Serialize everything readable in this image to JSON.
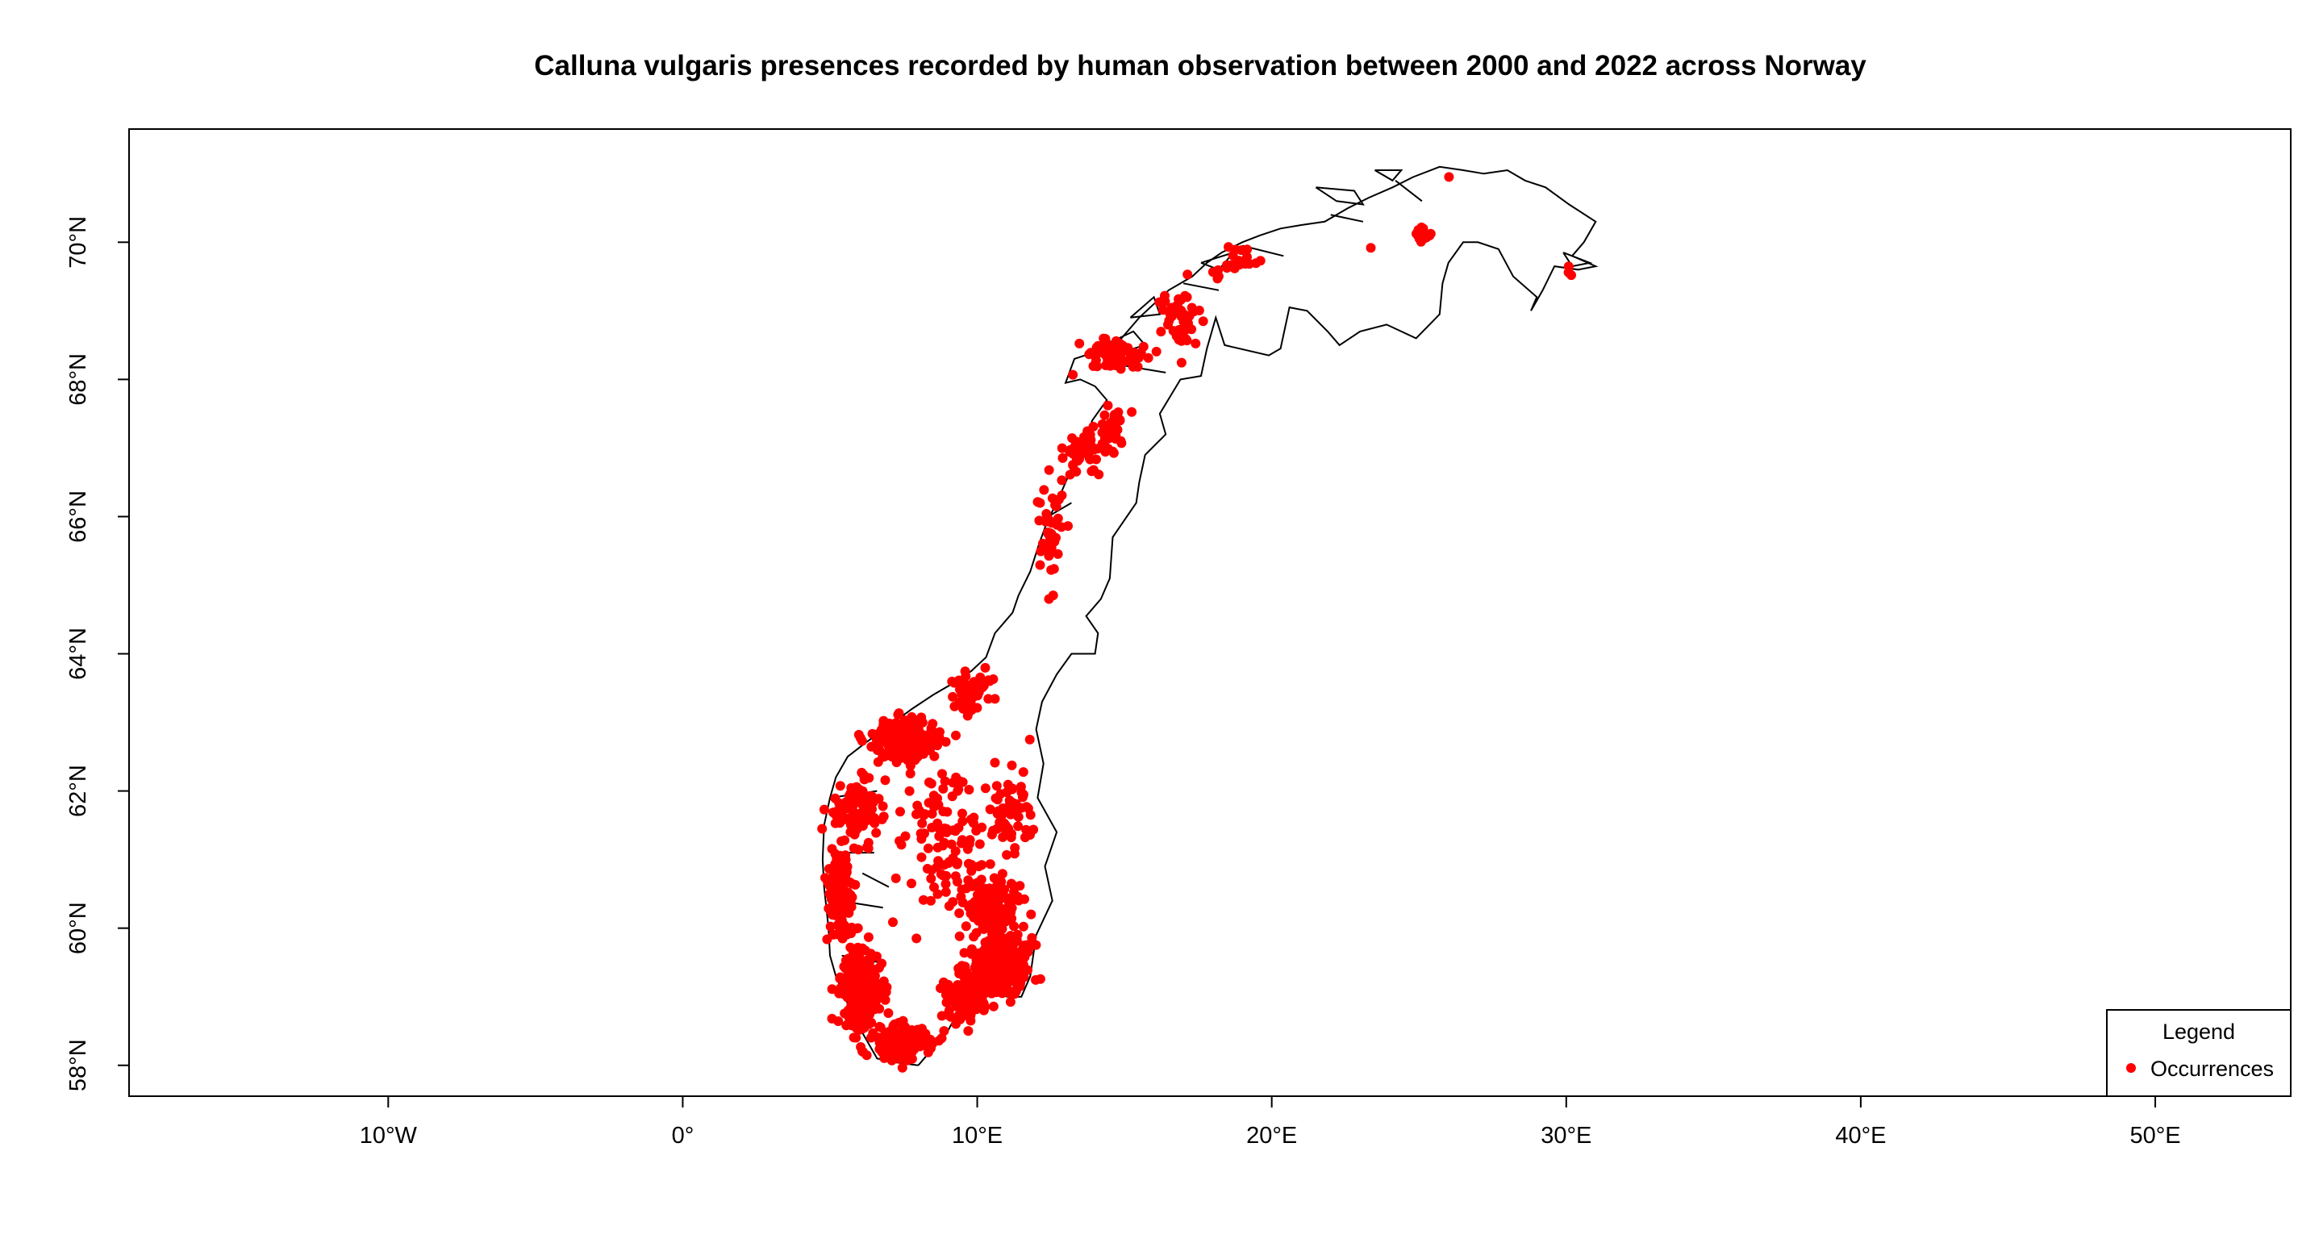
{
  "title": "Calluna vulgaris presences recorded by human observation between 2000 and 2022 across Norway",
  "colors": {
    "points": "#ff0000",
    "outline": "#000000",
    "background": "#ffffff"
  },
  "map": {
    "x_ticks": [
      {
        "value": -10,
        "label": "10°W"
      },
      {
        "value": 0,
        "label": "0°"
      },
      {
        "value": 10,
        "label": "10°E"
      },
      {
        "value": 20,
        "label": "20°E"
      },
      {
        "value": 30,
        "label": "30°E"
      },
      {
        "value": 40,
        "label": "40°E"
      },
      {
        "value": 50,
        "label": "50°E"
      }
    ],
    "y_ticks": [
      {
        "value": 58,
        "label": "58°N"
      },
      {
        "value": 60,
        "label": "60°N"
      },
      {
        "value": 62,
        "label": "62°N"
      },
      {
        "value": 64,
        "label": "64°N"
      },
      {
        "value": 66,
        "label": "66°N"
      },
      {
        "value": 68,
        "label": "68°N"
      },
      {
        "value": 70,
        "label": "70°N"
      }
    ],
    "xlim": [
      -18.8,
      54.6
    ],
    "ylim": [
      57.55,
      71.65
    ],
    "boundary": [
      [
        8.0,
        58.0
      ],
      [
        7.1,
        58.05
      ],
      [
        6.6,
        58.1
      ],
      [
        5.8,
        58.7
      ],
      [
        5.5,
        59.0
      ],
      [
        5.2,
        59.3
      ],
      [
        5.0,
        59.6
      ],
      [
        4.95,
        60.0
      ],
      [
        4.8,
        60.6
      ],
      [
        4.75,
        61.0
      ],
      [
        4.8,
        61.5
      ],
      [
        5.0,
        61.9
      ],
      [
        5.2,
        62.2
      ],
      [
        5.6,
        62.5
      ],
      [
        6.2,
        62.7
      ],
      [
        7.0,
        62.95
      ],
      [
        7.8,
        63.2
      ],
      [
        8.5,
        63.4
      ],
      [
        9.3,
        63.6
      ],
      [
        9.8,
        63.75
      ],
      [
        10.3,
        63.95
      ],
      [
        10.6,
        64.3
      ],
      [
        11.2,
        64.6
      ],
      [
        11.4,
        64.85
      ],
      [
        11.8,
        65.2
      ],
      [
        12.1,
        65.6
      ],
      [
        12.35,
        65.9
      ],
      [
        12.8,
        66.3
      ],
      [
        13.2,
        66.7
      ],
      [
        13.6,
        67.0
      ],
      [
        13.9,
        67.4
      ],
      [
        14.4,
        67.7
      ],
      [
        14.0,
        67.9
      ],
      [
        13.5,
        68.0
      ],
      [
        13.0,
        67.95
      ],
      [
        13.3,
        68.3
      ],
      [
        14.0,
        68.4
      ],
      [
        14.8,
        68.55
      ],
      [
        15.5,
        68.9
      ],
      [
        16.0,
        69.1
      ],
      [
        16.5,
        69.3
      ],
      [
        17.3,
        69.5
      ],
      [
        17.8,
        69.7
      ],
      [
        18.3,
        69.85
      ],
      [
        19.0,
        70.0
      ],
      [
        19.6,
        70.1
      ],
      [
        20.3,
        70.2
      ],
      [
        21.0,
        70.25
      ],
      [
        21.8,
        70.3
      ],
      [
        22.6,
        70.5
      ],
      [
        23.3,
        70.65
      ],
      [
        24.1,
        70.8
      ],
      [
        24.8,
        70.95
      ],
      [
        25.7,
        71.1
      ],
      [
        26.5,
        71.05
      ],
      [
        27.2,
        71.0
      ],
      [
        28.0,
        71.05
      ],
      [
        28.6,
        70.9
      ],
      [
        29.3,
        70.8
      ],
      [
        30.1,
        70.55
      ],
      [
        31.0,
        70.3
      ],
      [
        30.6,
        70.0
      ],
      [
        30.2,
        69.8
      ],
      [
        31.0,
        69.65
      ],
      [
        30.4,
        69.6
      ],
      [
        29.6,
        69.65
      ],
      [
        29.2,
        69.3
      ],
      [
        28.8,
        69.0
      ],
      [
        29.0,
        69.2
      ],
      [
        28.2,
        69.5
      ],
      [
        27.7,
        69.9
      ],
      [
        27.0,
        70.0
      ],
      [
        26.5,
        70.0
      ],
      [
        26.0,
        69.7
      ],
      [
        25.8,
        69.4
      ],
      [
        25.7,
        68.95
      ],
      [
        24.9,
        68.6
      ],
      [
        23.9,
        68.8
      ],
      [
        23.0,
        68.7
      ],
      [
        22.3,
        68.5
      ],
      [
        21.9,
        68.7
      ],
      [
        21.2,
        69.0
      ],
      [
        20.6,
        69.05
      ],
      [
        20.3,
        68.45
      ],
      [
        19.9,
        68.35
      ],
      [
        18.4,
        68.5
      ],
      [
        18.1,
        68.9
      ],
      [
        17.8,
        68.45
      ],
      [
        17.6,
        68.05
      ],
      [
        16.9,
        68.0
      ],
      [
        16.2,
        67.5
      ],
      [
        16.4,
        67.2
      ],
      [
        15.7,
        66.9
      ],
      [
        15.5,
        66.5
      ],
      [
        15.4,
        66.2
      ],
      [
        14.6,
        65.7
      ],
      [
        14.5,
        65.1
      ],
      [
        14.2,
        64.8
      ],
      [
        13.7,
        64.55
      ],
      [
        14.1,
        64.3
      ],
      [
        14.0,
        64.0
      ],
      [
        13.2,
        64.0
      ],
      [
        12.7,
        63.7
      ],
      [
        12.2,
        63.3
      ],
      [
        12.0,
        62.9
      ],
      [
        12.25,
        62.4
      ],
      [
        12.05,
        61.9
      ],
      [
        12.7,
        61.4
      ],
      [
        12.3,
        60.9
      ],
      [
        12.55,
        60.4
      ],
      [
        12.0,
        59.9
      ],
      [
        11.8,
        59.3
      ],
      [
        11.5,
        59.0
      ],
      [
        11.0,
        59.0
      ],
      [
        10.5,
        59.2
      ],
      [
        10.0,
        59.0
      ],
      [
        9.5,
        58.9
      ],
      [
        9.0,
        58.5
      ],
      [
        8.4,
        58.2
      ],
      [
        8.0,
        58.0
      ]
    ],
    "coastal_lines": [
      [
        [
          5.0,
          61.9
        ],
        [
          6.6,
          62.0
        ]
      ],
      [
        [
          5.2,
          61.1
        ],
        [
          6.5,
          61.1
        ]
      ],
      [
        [
          5.3,
          60.4
        ],
        [
          6.8,
          60.3
        ]
      ],
      [
        [
          5.4,
          59.6
        ],
        [
          6.7,
          59.5
        ]
      ],
      [
        [
          6.1,
          60.8
        ],
        [
          7.0,
          60.6
        ]
      ],
      [
        [
          6.5,
          62.4
        ],
        [
          8.0,
          62.6
        ]
      ],
      [
        [
          12.4,
          66.0
        ],
        [
          13.2,
          66.2
        ]
      ],
      [
        [
          15.0,
          68.2
        ],
        [
          16.4,
          68.1
        ]
      ],
      [
        [
          17.0,
          69.4
        ],
        [
          18.2,
          69.3
        ]
      ],
      [
        [
          19.0,
          69.95
        ],
        [
          20.4,
          69.8
        ]
      ],
      [
        [
          22.0,
          70.4
        ],
        [
          23.1,
          70.3
        ]
      ],
      [
        [
          24.2,
          70.9
        ],
        [
          25.1,
          70.6
        ]
      ]
    ],
    "islands": [
      [
        [
          21.5,
          70.8
        ],
        [
          22.8,
          70.75
        ],
        [
          23.1,
          70.55
        ],
        [
          22.2,
          70.6
        ],
        [
          21.5,
          70.8
        ]
      ],
      [
        [
          23.5,
          71.05
        ],
        [
          24.4,
          71.05
        ],
        [
          24.1,
          70.9
        ],
        [
          23.5,
          71.05
        ]
      ],
      [
        [
          14.3,
          68.5
        ],
        [
          15.3,
          68.7
        ],
        [
          15.7,
          68.5
        ],
        [
          14.9,
          68.4
        ],
        [
          14.3,
          68.5
        ]
      ],
      [
        [
          15.2,
          68.9
        ],
        [
          16.0,
          69.2
        ],
        [
          16.2,
          68.95
        ],
        [
          15.2,
          68.9
        ]
      ],
      [
        [
          17.6,
          69.7
        ],
        [
          18.7,
          69.85
        ],
        [
          18.2,
          69.6
        ],
        [
          17.6,
          69.7
        ]
      ],
      [
        [
          29.9,
          69.85
        ],
        [
          30.8,
          69.7
        ],
        [
          30.2,
          69.65
        ],
        [
          29.9,
          69.85
        ]
      ]
    ],
    "legend": {
      "title": "Legend",
      "label": "Occurrences",
      "position": "bottom-right"
    },
    "occurrence_clusters": [
      {
        "lon": 6.0,
        "lat": 59.1,
        "slon": 0.6,
        "slat": 0.55,
        "n": 220
      },
      {
        "lon": 7.4,
        "lat": 58.35,
        "slon": 0.75,
        "slat": 0.22,
        "n": 180
      },
      {
        "lon": 10.8,
        "lat": 59.5,
        "slon": 0.7,
        "slat": 0.35,
        "n": 380
      },
      {
        "lon": 9.6,
        "lat": 59.0,
        "slon": 0.6,
        "slat": 0.3,
        "n": 150
      },
      {
        "lon": 10.5,
        "lat": 60.3,
        "slon": 0.8,
        "slat": 0.3,
        "n": 130
      },
      {
        "lon": 5.3,
        "lat": 60.5,
        "slon": 0.35,
        "slat": 0.5,
        "n": 130
      },
      {
        "lon": 6.0,
        "lat": 61.7,
        "slon": 0.7,
        "slat": 0.4,
        "n": 110
      },
      {
        "lon": 7.6,
        "lat": 62.75,
        "slon": 0.9,
        "slat": 0.25,
        "n": 200
      },
      {
        "lon": 9.8,
        "lat": 63.45,
        "slon": 0.6,
        "slat": 0.25,
        "n": 60
      },
      {
        "lon": 9.0,
        "lat": 61.3,
        "slon": 1.3,
        "slat": 0.9,
        "n": 120
      },
      {
        "lon": 11.2,
        "lat": 61.6,
        "slon": 0.6,
        "slat": 0.7,
        "n": 60
      },
      {
        "lon": 12.5,
        "lat": 65.8,
        "slon": 0.4,
        "slat": 0.6,
        "n": 45
      },
      {
        "lon": 13.6,
        "lat": 66.9,
        "slon": 0.5,
        "slat": 0.3,
        "n": 40
      },
      {
        "lon": 14.6,
        "lat": 67.3,
        "slon": 0.5,
        "slat": 0.3,
        "n": 40
      },
      {
        "lon": 14.7,
        "lat": 68.35,
        "slon": 0.9,
        "slat": 0.2,
        "n": 70
      },
      {
        "lon": 16.9,
        "lat": 68.95,
        "slon": 0.5,
        "slat": 0.35,
        "n": 45
      },
      {
        "lon": 18.8,
        "lat": 69.65,
        "slon": 0.7,
        "slat": 0.25,
        "n": 25
      },
      {
        "lon": 25.1,
        "lat": 70.1,
        "slon": 0.35,
        "slat": 0.12,
        "n": 14
      },
      {
        "lon": 30.1,
        "lat": 69.55,
        "slon": 0.12,
        "slat": 0.1,
        "n": 3
      },
      {
        "lon": 23.4,
        "lat": 69.95,
        "slon": 0.1,
        "slat": 0.05,
        "n": 1
      },
      {
        "lon": 26.0,
        "lat": 70.98,
        "slon": 0.1,
        "slat": 0.04,
        "n": 1
      }
    ],
    "occurrence_seed": 20002022
  }
}
